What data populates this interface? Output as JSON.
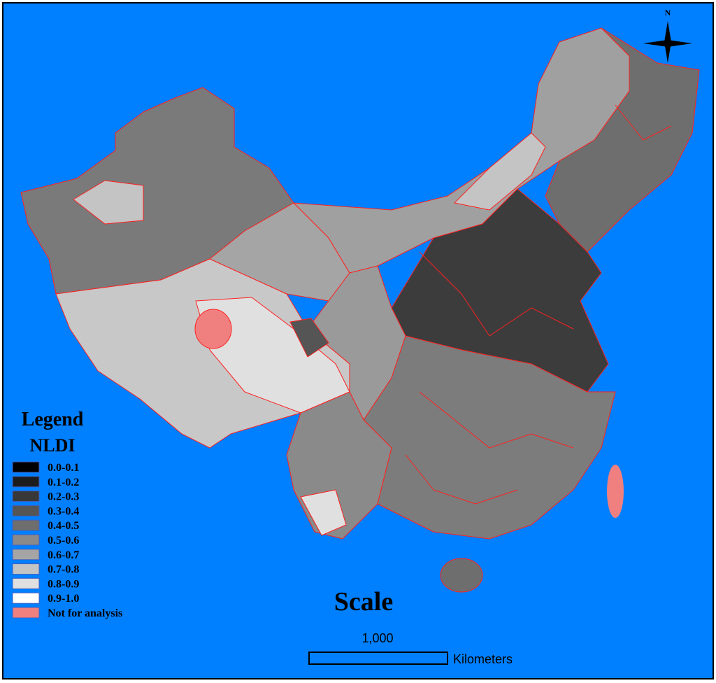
{
  "legend": {
    "title": "Legend",
    "subtitle": "NLDI",
    "items": [
      {
        "label": "0.0-0.1",
        "color": "#000000"
      },
      {
        "label": "0.1-0.2",
        "color": "#1c1c1c"
      },
      {
        "label": "0.2-0.3",
        "color": "#383838"
      },
      {
        "label": "0.3-0.4",
        "color": "#555555"
      },
      {
        "label": "0.4-0.5",
        "color": "#6e6e6e"
      },
      {
        "label": "0.5-0.6",
        "color": "#8a8a8a"
      },
      {
        "label": "0.6-0.7",
        "color": "#a5a5a5"
      },
      {
        "label": "0.7-0.8",
        "color": "#c4c4c4"
      },
      {
        "label": "0.8-0.9",
        "color": "#e0e0e0"
      },
      {
        "label": "0.9-1.0",
        "color": "#ffffff"
      },
      {
        "label": "Not for analysis",
        "color": "#f08080"
      }
    ]
  },
  "scale": {
    "title": "Scale",
    "distance": "1,000",
    "unit": "Kilometers"
  },
  "compass": {
    "label": "N"
  }
}
